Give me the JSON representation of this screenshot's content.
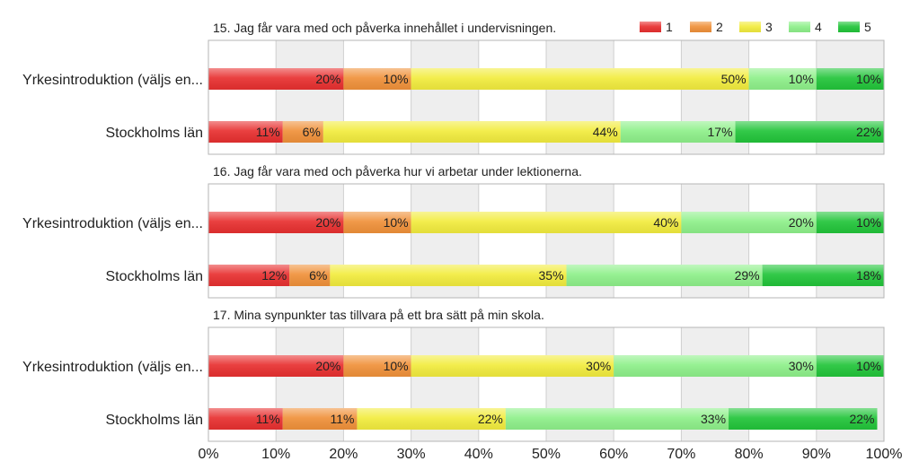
{
  "chart_data": {
    "type": "bar",
    "stacked": true,
    "orientation": "horizontal",
    "percent": true,
    "xlim": [
      0,
      100
    ],
    "grid": true,
    "legend_placement": "top-right",
    "legend": [
      {
        "name": "1",
        "color": "#e83030"
      },
      {
        "name": "2",
        "color": "#f0913a"
      },
      {
        "name": "3",
        "color": "#f2ec3e"
      },
      {
        "name": "4",
        "color": "#8ef08a"
      },
      {
        "name": "5",
        "color": "#22c53a"
      }
    ],
    "x_ticks": [
      "0%",
      "10%",
      "20%",
      "30%",
      "40%",
      "50%",
      "60%",
      "70%",
      "80%",
      "90%",
      "100%"
    ],
    "panels": [
      {
        "title": "15. Jag får vara med och påverka innehållet i undervisningen.",
        "rows": [
          {
            "category": "Yrkesintroduktion (väljs en...",
            "values": [
              20,
              10,
              50,
              10,
              10
            ],
            "labels": [
              "20%",
              "10%",
              "50%",
              "10%",
              "10%"
            ]
          },
          {
            "category": "Stockholms län",
            "values": [
              11,
              6,
              44,
              17,
              22
            ],
            "labels": [
              "11%",
              "6%",
              "44%",
              "17%",
              "22%"
            ]
          }
        ]
      },
      {
        "title": "16. Jag får vara med och påverka hur vi arbetar under lektionerna.",
        "rows": [
          {
            "category": "Yrkesintroduktion (väljs en...",
            "values": [
              20,
              10,
              40,
              20,
              10
            ],
            "labels": [
              "20%",
              "10%",
              "40%",
              "20%",
              "10%"
            ]
          },
          {
            "category": "Stockholms län",
            "values": [
              12,
              6,
              35,
              29,
              18
            ],
            "labels": [
              "12%",
              "6%",
              "35%",
              "29%",
              "18%"
            ]
          }
        ]
      },
      {
        "title": "17. Mina synpunkter tas tillvara på ett bra sätt på min skola.",
        "rows": [
          {
            "category": "Yrkesintroduktion (väljs en...",
            "values": [
              20,
              10,
              30,
              30,
              10
            ],
            "labels": [
              "20%",
              "10%",
              "30%",
              "30%",
              "10%"
            ]
          },
          {
            "category": "Stockholms län",
            "values": [
              11,
              11,
              22,
              33,
              22
            ],
            "labels": [
              "11%",
              "11%",
              "22%",
              "33%",
              "22%"
            ]
          }
        ]
      }
    ]
  }
}
